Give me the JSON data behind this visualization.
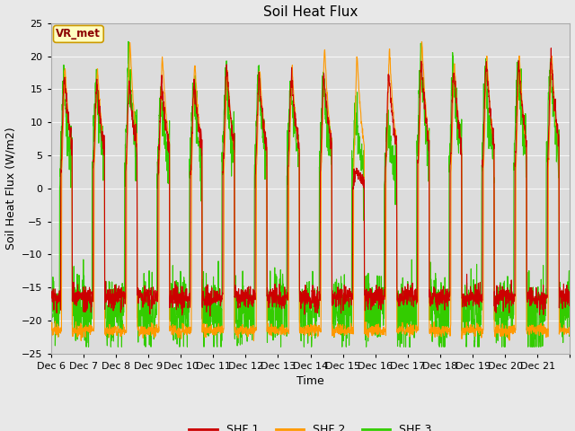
{
  "title": "Soil Heat Flux",
  "xlabel": "Time",
  "ylabel": "Soil Heat Flux (W/m2)",
  "ylim": [
    -25,
    25
  ],
  "yticks": [
    -25,
    -20,
    -15,
    -10,
    -5,
    0,
    5,
    10,
    15,
    20,
    25
  ],
  "colors": {
    "SHF 1": "#cc0000",
    "SHF 2": "#ff9900",
    "SHF 3": "#33cc00"
  },
  "legend_label": "VR_met",
  "legend_box_facecolor": "#ffffc0",
  "legend_box_edgecolor": "#cc9900",
  "background_color": "#e8e8e8",
  "plot_bg_color": "#dcdcdc",
  "n_days": 16,
  "start_day": 6,
  "xtick_labels": [
    "Dec 6",
    "Dec 7",
    "Dec 8",
    "Dec 9",
    "Dec 10",
    "Dec 11",
    "Dec 12",
    "Dec 13",
    "Dec 14",
    "Dec 15",
    "Dec 16",
    "Dec 17",
    "Dec 18",
    "Dec 19",
    "Dec 20",
    "Dec 21"
  ],
  "points_per_day": 144,
  "line_width": 0.8,
  "title_fontsize": 11,
  "label_fontsize": 9,
  "tick_fontsize": 8
}
